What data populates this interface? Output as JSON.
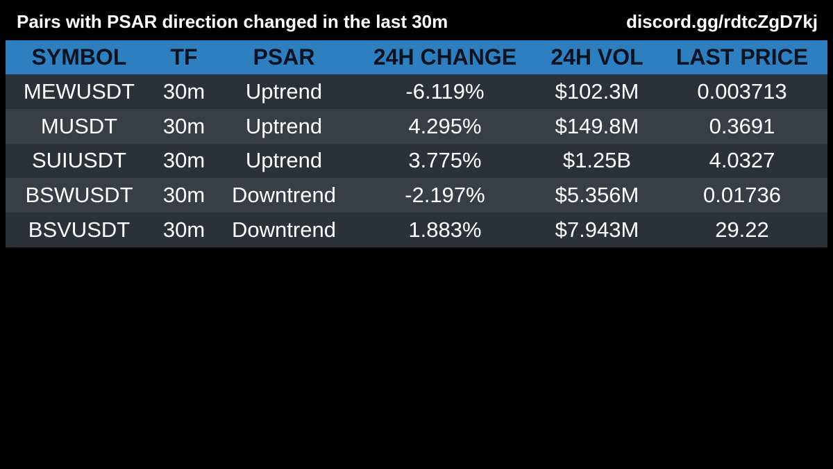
{
  "header": {
    "title": "Pairs with PSAR direction changed in the last 30m",
    "link": "discord.gg/rdtcZgD7kj"
  },
  "table": {
    "columns": [
      "SYMBOL",
      "TF",
      "PSAR",
      "24H CHANGE",
      "24H VOL",
      "LAST PRICE"
    ],
    "rows": [
      [
        "MEWUSDT",
        "30m",
        "Uptrend",
        "-6.119%",
        "$102.3M",
        "0.003713"
      ],
      [
        "MUSDT",
        "30m",
        "Uptrend",
        "4.295%",
        "$149.8M",
        "0.3691"
      ],
      [
        "SUIUSDT",
        "30m",
        "Uptrend",
        "3.775%",
        "$1.25B",
        "4.0327"
      ],
      [
        "BSWUSDT",
        "30m",
        "Downtrend",
        "-2.197%",
        "$5.356M",
        "0.01736"
      ],
      [
        "BSVUSDT",
        "30m",
        "Downtrend",
        "1.883%",
        "$7.943M",
        "29.22"
      ]
    ]
  },
  "colors": {
    "background": "#000000",
    "header_row": "#2e7fbf",
    "header_text": "#0b1220",
    "row_odd": "#2b3137",
    "row_even": "#383e44",
    "text": "#ffffff"
  }
}
